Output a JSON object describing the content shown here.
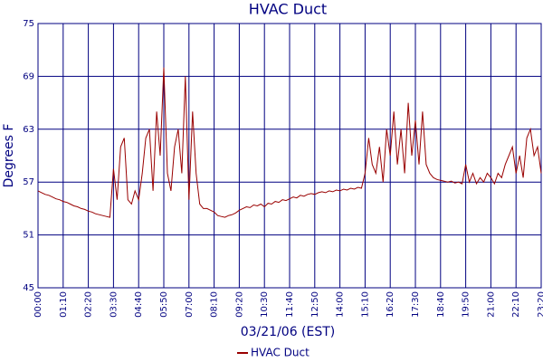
{
  "chart_data": {
    "type": "line",
    "title": "HVAC Duct",
    "xlabel": "03/21/06 (EST)",
    "ylabel": "Degrees F",
    "categories": [
      "00:00",
      null,
      null,
      null,
      null,
      null,
      null,
      "01:10",
      null,
      null,
      null,
      null,
      null,
      null,
      "02:20",
      null,
      null,
      null,
      null,
      null,
      null,
      "03:30",
      null,
      null,
      null,
      null,
      null,
      null,
      "04:40",
      null,
      null,
      null,
      null,
      null,
      null,
      "05:50",
      null,
      null,
      null,
      null,
      null,
      null,
      "07:00",
      null,
      null,
      null,
      null,
      null,
      null,
      "08:10",
      null,
      null,
      null,
      null,
      null,
      null,
      "09:20",
      null,
      null,
      null,
      null,
      null,
      null,
      "10:30",
      null,
      null,
      null,
      null,
      null,
      null,
      "11:40",
      null,
      null,
      null,
      null,
      null,
      null,
      "12:50",
      null,
      null,
      null,
      null,
      null,
      null,
      "14:00",
      null,
      null,
      null,
      null,
      null,
      null,
      "15:10",
      null,
      null,
      null,
      null,
      null,
      null,
      "16:20",
      null,
      null,
      null,
      null,
      null,
      null,
      "17:30",
      null,
      null,
      null,
      null,
      null,
      null,
      "18:40",
      null,
      null,
      null,
      null,
      null,
      null,
      "19:50",
      null,
      null,
      null,
      null,
      null,
      null,
      "21:00",
      null,
      null,
      null,
      null,
      null,
      null,
      "22:10",
      null,
      null,
      null,
      null,
      null,
      null,
      "23:20"
    ],
    "series": [
      {
        "name": "HVAC Duct",
        "color": "#990000",
        "values": [
          56,
          55.8,
          55.6,
          55.5,
          55.3,
          55.1,
          55,
          54.8,
          54.7,
          54.5,
          54.3,
          54.2,
          54,
          53.9,
          53.7,
          53.6,
          53.4,
          53.3,
          53.2,
          53.1,
          53,
          58.5,
          55,
          61,
          62,
          55,
          54.5,
          56,
          55,
          58,
          62,
          63,
          56,
          65,
          60,
          70,
          58,
          56,
          61,
          63,
          58,
          69,
          55,
          65,
          58,
          54.5,
          54,
          54,
          53.8,
          53.6,
          53.2,
          53.1,
          53,
          53.2,
          53.3,
          53.5,
          53.8,
          54,
          54.2,
          54.1,
          54.4,
          54.3,
          54.5,
          54.2,
          54.6,
          54.5,
          54.8,
          54.7,
          55,
          54.9,
          55.1,
          55.3,
          55.2,
          55.5,
          55.4,
          55.6,
          55.7,
          55.6,
          55.8,
          55.9,
          55.8,
          56,
          55.9,
          56.1,
          56,
          56.2,
          56.1,
          56.3,
          56.2,
          56.4,
          56.3,
          58,
          62,
          59,
          58,
          61,
          57,
          63,
          60,
          65,
          59,
          63,
          58,
          66,
          60,
          64,
          59,
          65,
          59,
          58,
          57.5,
          57.3,
          57.2,
          57.1,
          57,
          57.1,
          56.9,
          57,
          56.8,
          59,
          57,
          58,
          56.8,
          57.5,
          57,
          58,
          57.5,
          56.8,
          58,
          57.5,
          59,
          60,
          61,
          58,
          60,
          57.5,
          62,
          63,
          60,
          61,
          58
        ]
      }
    ],
    "ylim": [
      45,
      75
    ],
    "yticks": [
      45,
      51,
      57,
      63,
      69,
      75
    ],
    "grid": true,
    "legend": "bottom"
  }
}
